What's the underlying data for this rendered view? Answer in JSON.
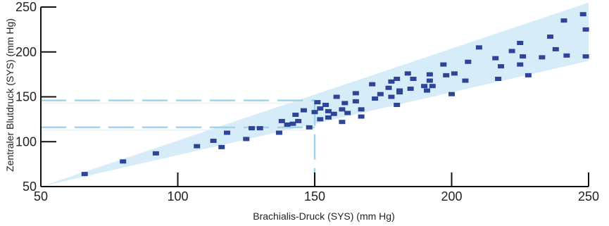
{
  "chart_data": {
    "type": "scatter",
    "xlabel": "Brachialis-Druck (SYS) (mm Hg)",
    "ylabel": "Zentraler Blutdruck (SYS) (mm Hg)",
    "xlim": [
      50,
      250
    ],
    "ylim": [
      50,
      250
    ],
    "x_ticks": [
      50,
      100,
      150,
      200,
      250
    ],
    "y_ticks": [
      50,
      100,
      150,
      200,
      250
    ],
    "grid": false,
    "colors": {
      "point": "#2e4496",
      "band_fill": "#d6ecf8",
      "reference_line": "#9fd3ea",
      "axis": "#111111"
    },
    "confidence_band": {
      "lower": [
        [
          50,
          50
        ],
        [
          250,
          190
        ]
      ],
      "upper": [
        [
          50,
          50
        ],
        [
          250,
          255
        ]
      ]
    },
    "reference_lines": {
      "x": 150,
      "y_values": [
        146,
        116
      ]
    },
    "points": [
      [
        66,
        64
      ],
      [
        80,
        78
      ],
      [
        92,
        87
      ],
      [
        107,
        95
      ],
      [
        113,
        101
      ],
      [
        116,
        94
      ],
      [
        118,
        110
      ],
      [
        125,
        103
      ],
      [
        127,
        115
      ],
      [
        130,
        115
      ],
      [
        137,
        110
      ],
      [
        138,
        123
      ],
      [
        140,
        119
      ],
      [
        142,
        120
      ],
      [
        143,
        130
      ],
      [
        144,
        123
      ],
      [
        146,
        135
      ],
      [
        148,
        116
      ],
      [
        150,
        133
      ],
      [
        151,
        144
      ],
      [
        152,
        125
      ],
      [
        152,
        137
      ],
      [
        154,
        141
      ],
      [
        155,
        127
      ],
      [
        155,
        134
      ],
      [
        157,
        131
      ],
      [
        158,
        150
      ],
      [
        160,
        136
      ],
      [
        160,
        122
      ],
      [
        161,
        143
      ],
      [
        162,
        132
      ],
      [
        165,
        145
      ],
      [
        165,
        154
      ],
      [
        167,
        136
      ],
      [
        167,
        128
      ],
      [
        171,
        164
      ],
      [
        172,
        148
      ],
      [
        174,
        153
      ],
      [
        177,
        160
      ],
      [
        178,
        150
      ],
      [
        178,
        167
      ],
      [
        180,
        141
      ],
      [
        180,
        170
      ],
      [
        181,
        157
      ],
      [
        181,
        155
      ],
      [
        184,
        176
      ],
      [
        185,
        159
      ],
      [
        186,
        170
      ],
      [
        190,
        162
      ],
      [
        191,
        157
      ],
      [
        192,
        175
      ],
      [
        192,
        168
      ],
      [
        193,
        162
      ],
      [
        197,
        186
      ],
      [
        198,
        174
      ],
      [
        200,
        153
      ],
      [
        201,
        176
      ],
      [
        205,
        168
      ],
      [
        206,
        189
      ],
      [
        210,
        205
      ],
      [
        216,
        193
      ],
      [
        217,
        170
      ],
      [
        218,
        184
      ],
      [
        222,
        201
      ],
      [
        225,
        186
      ],
      [
        225,
        210
      ],
      [
        226,
        195
      ],
      [
        228,
        174
      ],
      [
        233,
        194
      ],
      [
        236,
        217
      ],
      [
        238,
        203
      ],
      [
        241,
        235
      ],
      [
        242,
        196
      ],
      [
        248,
        242
      ],
      [
        249,
        225
      ],
      [
        249,
        195
      ]
    ]
  }
}
